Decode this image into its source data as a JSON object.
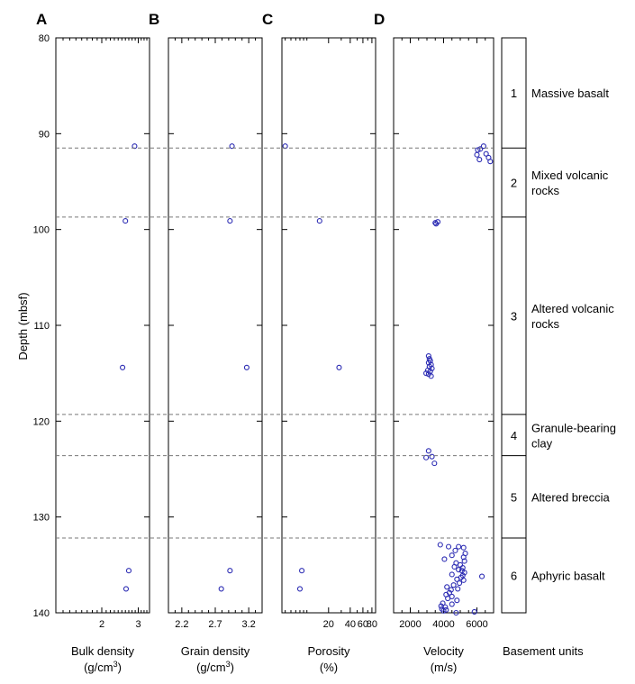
{
  "figure": {
    "y_axis_label": "Depth (mbsf)",
    "unit_column_title": "Basement units"
  },
  "chart_data": {
    "type": "scatter",
    "ylabel": "Depth (mbsf)",
    "ylim": [
      80,
      140
    ],
    "y_inverted": true,
    "yticks": [
      80,
      90,
      100,
      110,
      120,
      130,
      140
    ],
    "grid": false,
    "unit_boundaries": [
      91.5,
      98.7,
      119.3,
      123.6,
      132.2
    ],
    "units": [
      {
        "number": "1",
        "lines": [
          "Massive basalt"
        ],
        "top": 80,
        "bottom": 91.5
      },
      {
        "number": "2",
        "lines": [
          "Mixed volcanic",
          "rocks"
        ],
        "top": 91.5,
        "bottom": 98.7
      },
      {
        "number": "3",
        "lines": [
          "Altered volcanic",
          "rocks"
        ],
        "top": 98.7,
        "bottom": 119.3
      },
      {
        "number": "4",
        "lines": [
          "Granule-bearing",
          "clay"
        ],
        "top": 119.3,
        "bottom": 123.6
      },
      {
        "number": "5",
        "lines": [
          "Altered breccia"
        ],
        "top": 123.6,
        "bottom": 132.2
      },
      {
        "number": "6",
        "lines": [
          "Aphyric basalt"
        ],
        "top": 132.2,
        "bottom": 140
      }
    ],
    "panels": [
      {
        "letter": "A",
        "xlabel": [
          "Bulk density",
          "(g/cm",
          "3",
          ")"
        ],
        "xscale": "log",
        "xlim": [
          1.2,
          3.4
        ],
        "xticks": [
          2,
          3
        ],
        "xtick_labels": [
          "2",
          "3"
        ],
        "minor_ticks": [
          1.3,
          1.4,
          1.5,
          1.6,
          1.7,
          1.8,
          1.9,
          2.1,
          2.2,
          2.3,
          2.4,
          2.5,
          2.6,
          2.7,
          2.8,
          2.9,
          3.1,
          3.2,
          3.3
        ],
        "points": [
          [
            2.88,
            91.3
          ],
          [
            2.6,
            99.1
          ],
          [
            2.52,
            114.4
          ],
          [
            2.7,
            135.6
          ],
          [
            2.62,
            137.5
          ]
        ]
      },
      {
        "letter": "B",
        "xlabel": [
          "Grain density",
          "(g/cm",
          "3",
          ")"
        ],
        "xscale": "linear",
        "xlim": [
          2.0,
          3.4
        ],
        "xticks": [
          2.2,
          2.7,
          3.2
        ],
        "xtick_labels": [
          "2.2",
          "2.7",
          "3.2"
        ],
        "minor_ticks": [
          2.1,
          2.3,
          2.4,
          2.5,
          2.6,
          2.8,
          2.9,
          3.0,
          3.1,
          3.3
        ],
        "points": [
          [
            2.95,
            91.3
          ],
          [
            2.92,
            99.1
          ],
          [
            3.17,
            114.4
          ],
          [
            2.92,
            135.6
          ],
          [
            2.79,
            137.5
          ]
        ]
      },
      {
        "letter": "C",
        "xlabel": [
          "Porosity",
          "(%)"
        ],
        "xscale": "log",
        "xlim": [
          4.5,
          90
        ],
        "xticks": [
          20,
          40,
          60,
          80
        ],
        "xtick_labels": [
          "20",
          "40",
          "60",
          "80"
        ],
        "minor_ticks": [
          5,
          6,
          7,
          8,
          9,
          10,
          30,
          50,
          70
        ],
        "points": [
          [
            5,
            91.3
          ],
          [
            15,
            99.1
          ],
          [
            28,
            114.4
          ],
          [
            8.5,
            135.6
          ],
          [
            8,
            137.5
          ]
        ]
      },
      {
        "letter": "D",
        "xlabel": [
          "Velocity",
          "(m/s)"
        ],
        "xscale": "linear",
        "xlim": [
          1000,
          7000
        ],
        "xticks": [
          2000,
          4000,
          6000
        ],
        "xtick_labels": [
          "2000",
          "4000",
          "6000"
        ],
        "minor_ticks": [
          1500,
          2500,
          3000,
          3500,
          4500,
          5000,
          5500,
          6500
        ],
        "points": [
          [
            6400,
            91.3
          ],
          [
            6200,
            91.6
          ],
          [
            6050,
            91.7
          ],
          [
            6550,
            92.1
          ],
          [
            6000,
            92.2
          ],
          [
            6700,
            92.5
          ],
          [
            6150,
            92.7
          ],
          [
            6800,
            92.9
          ],
          [
            3500,
            99.3
          ],
          [
            3650,
            99.2
          ],
          [
            3550,
            99.4
          ],
          [
            3100,
            113.2
          ],
          [
            3150,
            113.5
          ],
          [
            3200,
            113.7
          ],
          [
            3100,
            113.9
          ],
          [
            3250,
            114.1
          ],
          [
            3150,
            114.3
          ],
          [
            3300,
            114.5
          ],
          [
            3050,
            114.7
          ],
          [
            3200,
            114.8
          ],
          [
            2950,
            115.0
          ],
          [
            3100,
            115.1
          ],
          [
            3250,
            115.3
          ],
          [
            3100,
            123.1
          ],
          [
            2950,
            123.8
          ],
          [
            3300,
            123.7
          ],
          [
            3450,
            124.4
          ],
          [
            3800,
            132.9
          ],
          [
            4300,
            133.1
          ],
          [
            4900,
            133.1
          ],
          [
            5200,
            133.2
          ],
          [
            4700,
            133.5
          ],
          [
            5300,
            133.8
          ],
          [
            4500,
            134.0
          ],
          [
            5200,
            134.2
          ],
          [
            4050,
            134.4
          ],
          [
            5250,
            134.6
          ],
          [
            4750,
            134.8
          ],
          [
            5000,
            135.0
          ],
          [
            4650,
            135.2
          ],
          [
            5150,
            135.3
          ],
          [
            4900,
            135.5
          ],
          [
            5100,
            135.6
          ],
          [
            5250,
            135.8
          ],
          [
            4500,
            136.0
          ],
          [
            5150,
            136.1
          ],
          [
            5050,
            136.3
          ],
          [
            6300,
            136.2
          ],
          [
            4800,
            136.5
          ],
          [
            5200,
            136.6
          ],
          [
            4950,
            136.9
          ],
          [
            4600,
            137.1
          ],
          [
            4200,
            137.3
          ],
          [
            4850,
            137.5
          ],
          [
            4450,
            137.6
          ],
          [
            4350,
            137.9
          ],
          [
            4150,
            138.1
          ],
          [
            4500,
            138.3
          ],
          [
            4250,
            138.5
          ],
          [
            4800,
            138.7
          ],
          [
            3950,
            139.0
          ],
          [
            4500,
            139.1
          ],
          [
            3850,
            139.3
          ],
          [
            4100,
            139.4
          ],
          [
            3900,
            139.6
          ],
          [
            4000,
            139.8
          ],
          [
            4150,
            139.7
          ],
          [
            4750,
            140.0
          ],
          [
            5850,
            139.9
          ]
        ]
      }
    ]
  }
}
